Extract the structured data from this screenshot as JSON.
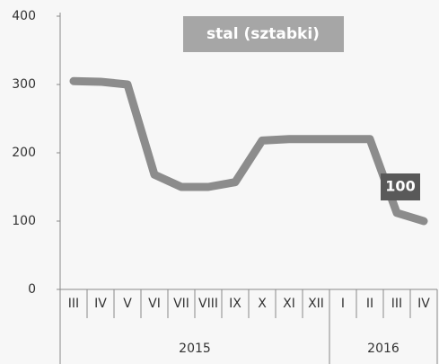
{
  "chart_data": {
    "type": "line",
    "title": "stal (sztabki)",
    "category_groups": [
      {
        "label": "2015",
        "categories": [
          "III",
          "IV",
          "V",
          "VI",
          "VII",
          "VIII",
          "IX",
          "X",
          "XI",
          "XII"
        ]
      },
      {
        "label": "2016",
        "categories": [
          "I",
          "II",
          "III",
          "IV"
        ]
      }
    ],
    "values": [
      305,
      304,
      300,
      168,
      150,
      150,
      157,
      218,
      220,
      220,
      220,
      220,
      112,
      100
    ],
    "color": "#8c8c8c",
    "ylim": [
      0,
      400
    ],
    "yticks": [
      0,
      100,
      200,
      300,
      400
    ]
  }
}
